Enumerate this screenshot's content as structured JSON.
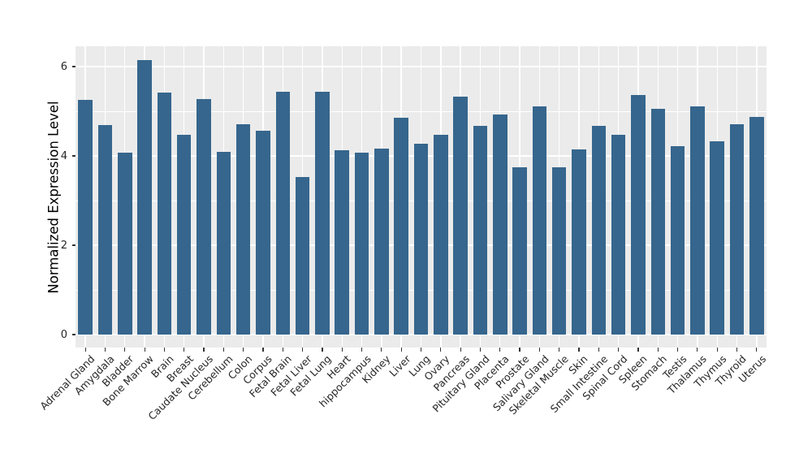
{
  "chart_data": {
    "type": "bar",
    "title": "",
    "xlabel": "",
    "ylabel": "Normalized Expression Level",
    "categories": [
      "Adrenal Gland",
      "Amygdala",
      "Bladder",
      "Bone Marrow",
      "Brain",
      "Breast",
      "Caudate Nucleus",
      "Cerebellum",
      "Colon",
      "Corpus",
      "Fetal Brain",
      "Fetal Liver",
      "Fetal Lung",
      "Heart",
      "hippocampus",
      "Kidney",
      "Liver",
      "Lung",
      "Ovary",
      "Pancreas",
      "Pituitary Gland",
      "Placenta",
      "Prostate",
      "Salivary Gland",
      "Skeletal Muscle",
      "Skin",
      "Small Intestine",
      "Spinal Cord",
      "Spleen",
      "Stomach",
      "Testis",
      "Thalamus",
      "Thymus",
      "Thyroid",
      "Uterus"
    ],
    "values": [
      5.26,
      4.7,
      4.07,
      6.15,
      5.41,
      4.48,
      5.28,
      4.1,
      4.71,
      4.57,
      5.43,
      3.52,
      5.43,
      4.12,
      4.07,
      4.16,
      4.85,
      4.28,
      4.48,
      5.32,
      4.68,
      4.92,
      3.75,
      5.11,
      3.74,
      4.15,
      4.68,
      4.48,
      5.36,
      5.05,
      4.21,
      5.11,
      4.33,
      4.71,
      4.87
    ],
    "yticks": [
      0,
      2,
      4,
      6
    ],
    "yticks_minor": [
      1,
      3,
      5
    ],
    "ylim": [
      -0.29,
      6.45
    ],
    "grid": "on",
    "legend": "none",
    "colors": {
      "bar": "#36668D",
      "panel_background": "#EBEBEB",
      "gridline": "#FFFFFF",
      "tick_mark": "#333333",
      "tick_text": "#262626",
      "axis_title_text": "#000000",
      "figure_background": "#FFFFFF"
    }
  }
}
